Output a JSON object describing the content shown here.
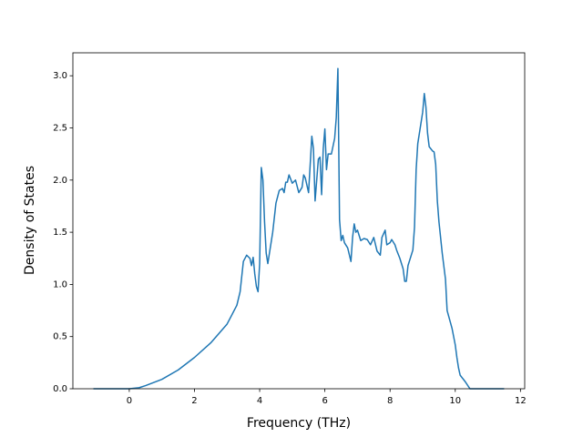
{
  "chart_data": {
    "type": "line",
    "xlabel": "Frequency (THz)",
    "ylabel": "Density of States",
    "x": [
      -1.1,
      0,
      0.3,
      0.5,
      1.0,
      1.5,
      2.0,
      2.5,
      3.0,
      3.3,
      3.4,
      3.5,
      3.6,
      3.7,
      3.75,
      3.8,
      3.85,
      3.9,
      3.95,
      4.0,
      4.05,
      4.1,
      4.15,
      4.2,
      4.25,
      4.3,
      4.4,
      4.5,
      4.6,
      4.7,
      4.75,
      4.8,
      4.85,
      4.9,
      5.0,
      5.1,
      5.2,
      5.3,
      5.35,
      5.4,
      5.5,
      5.6,
      5.65,
      5.7,
      5.8,
      5.85,
      5.9,
      5.95,
      6.0,
      6.05,
      6.1,
      6.2,
      6.3,
      6.35,
      6.4,
      6.45,
      6.5,
      6.55,
      6.6,
      6.7,
      6.8,
      6.85,
      6.9,
      6.95,
      7.0,
      7.1,
      7.2,
      7.3,
      7.4,
      7.5,
      7.6,
      7.7,
      7.75,
      7.85,
      7.9,
      8.0,
      8.05,
      8.15,
      8.2,
      8.3,
      8.4,
      8.45,
      8.5,
      8.55,
      8.7,
      8.75,
      8.8,
      8.85,
      8.9,
      9.0,
      9.05,
      9.1,
      9.15,
      9.2,
      9.3,
      9.35,
      9.4,
      9.45,
      9.5,
      9.6,
      9.7,
      9.75,
      9.9,
      10.0,
      10.05,
      10.1,
      10.15,
      10.3,
      10.45,
      11.5
    ],
    "series": [
      {
        "name": "DOS",
        "color": "#1f77b4",
        "values": [
          0,
          0,
          0.01,
          0.03,
          0.09,
          0.18,
          0.3,
          0.44,
          0.62,
          0.8,
          0.93,
          1.22,
          1.28,
          1.25,
          1.18,
          1.26,
          1.1,
          0.98,
          0.93,
          1.2,
          2.12,
          2.0,
          1.6,
          1.3,
          1.2,
          1.3,
          1.5,
          1.78,
          1.9,
          1.92,
          1.88,
          1.98,
          1.98,
          2.05,
          1.97,
          2.0,
          1.88,
          1.93,
          2.05,
          2.02,
          1.88,
          2.42,
          2.3,
          1.8,
          2.2,
          2.22,
          1.86,
          2.3,
          2.49,
          2.1,
          2.25,
          2.25,
          2.4,
          2.6,
          3.07,
          1.62,
          1.42,
          1.47,
          1.4,
          1.35,
          1.22,
          1.45,
          1.58,
          1.5,
          1.52,
          1.42,
          1.44,
          1.43,
          1.38,
          1.45,
          1.32,
          1.28,
          1.45,
          1.52,
          1.38,
          1.4,
          1.43,
          1.38,
          1.33,
          1.25,
          1.15,
          1.03,
          1.03,
          1.18,
          1.33,
          1.55,
          2.1,
          2.35,
          2.45,
          2.65,
          2.83,
          2.7,
          2.45,
          2.32,
          2.28,
          2.27,
          2.15,
          1.8,
          1.6,
          1.3,
          1.05,
          0.75,
          0.58,
          0.42,
          0.3,
          0.2,
          0.13,
          0.07,
          0,
          0
        ]
      }
    ],
    "xlim": [
      -1.73,
      12.13
    ],
    "xticks": [
      0,
      2,
      4,
      6,
      8,
      10,
      12
    ],
    "ylim": [
      0,
      3.22
    ],
    "yticks": [
      {
        "value": 0,
        "label": "0.0"
      },
      {
        "value": 0.5,
        "label": "0.5"
      },
      {
        "value": 1,
        "label": "1.0"
      },
      {
        "value": 1.5,
        "label": "1.5"
      },
      {
        "value": 2,
        "label": "2.0"
      },
      {
        "value": 2.5,
        "label": "2.5"
      },
      {
        "value": 3,
        "label": "3.0"
      }
    ]
  }
}
